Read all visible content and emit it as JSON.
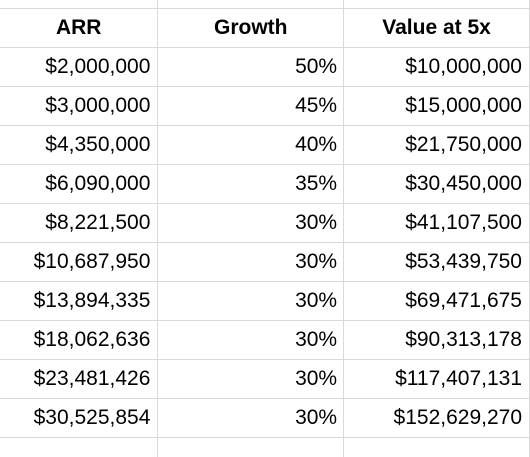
{
  "sheet": {
    "columns": [
      "ARR",
      "Growth",
      "Value at 5x"
    ],
    "rows": [
      [
        "$2,000,000",
        "50%",
        "$10,000,000"
      ],
      [
        "$3,000,000",
        "45%",
        "$15,000,000"
      ],
      [
        "$4,350,000",
        "40%",
        "$21,750,000"
      ],
      [
        "$6,090,000",
        "35%",
        "$30,450,000"
      ],
      [
        "$8,221,500",
        "30%",
        "$41,107,500"
      ],
      [
        "$10,687,950",
        "30%",
        "$53,439,750"
      ],
      [
        "$13,894,335",
        "30%",
        "$69,471,675"
      ],
      [
        "$18,062,636",
        "30%",
        "$90,313,178"
      ],
      [
        "$23,481,426",
        "30%",
        "$117,407,131"
      ],
      [
        "$30,525,854",
        "30%",
        "$152,629,270"
      ]
    ]
  },
  "colors": {
    "gridline": "#d9d9d9",
    "text": "#000000",
    "background": "#ffffff"
  }
}
